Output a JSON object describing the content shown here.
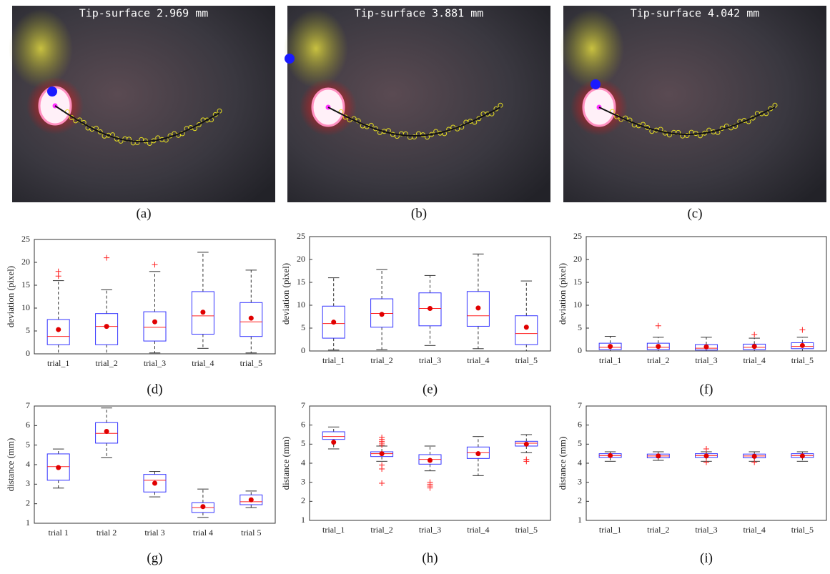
{
  "images": [
    {
      "label": "Tip-surface 2.969 mm",
      "caption": "(a)"
    },
    {
      "label": "Tip-surface 3.881 mm",
      "caption": "(b)"
    },
    {
      "label": "Tip-surface 4.042 mm",
      "caption": "(c)"
    }
  ],
  "chart_data": [
    {
      "type": "box",
      "caption": "(d)",
      "ylabel": "deviation (pixel)",
      "categories": [
        "trial_1",
        "trial_2",
        "trial_3",
        "trial_4",
        "trial_5"
      ],
      "ylim": [
        0,
        25
      ],
      "yticks": [
        0,
        5,
        10,
        15,
        20,
        25
      ],
      "box_color": "#3333ff",
      "median_color": "#ff2020",
      "mean_color": "#e00000",
      "boxes": [
        {
          "low": 0,
          "q1": 2,
          "median": 3.8,
          "q3": 7.5,
          "high": 16,
          "mean": 5.3,
          "outliers": [
            17,
            18
          ]
        },
        {
          "low": 0,
          "q1": 2,
          "median": 6,
          "q3": 8.8,
          "high": 14,
          "mean": 6,
          "outliers": [
            21
          ]
        },
        {
          "low": 0.2,
          "q1": 2.8,
          "median": 5.8,
          "q3": 9.2,
          "high": 18,
          "mean": 7,
          "outliers": [
            19.5
          ]
        },
        {
          "low": 1.2,
          "q1": 4.3,
          "median": 8.3,
          "q3": 13.6,
          "high": 22.2,
          "mean": 9.1,
          "outliers": []
        },
        {
          "low": 0.2,
          "q1": 3.8,
          "median": 7,
          "q3": 11.2,
          "high": 18.3,
          "mean": 7.8,
          "outliers": []
        }
      ]
    },
    {
      "type": "box",
      "caption": "(e)",
      "ylabel": "deviation (pixel)",
      "categories": [
        "trial_1",
        "trial_2",
        "trial_3",
        "trial_4",
        "trial_5"
      ],
      "ylim": [
        0,
        25
      ],
      "yticks": [
        0,
        5,
        10,
        15,
        20,
        25
      ],
      "box_color": "#3333ff",
      "median_color": "#ff2020",
      "mean_color": "#e00000",
      "boxes": [
        {
          "low": 0.2,
          "q1": 2.8,
          "median": 6,
          "q3": 9.8,
          "high": 16,
          "mean": 6.3,
          "outliers": []
        },
        {
          "low": 0.3,
          "q1": 5.2,
          "median": 8.2,
          "q3": 11.4,
          "high": 17.8,
          "mean": 8,
          "outliers": []
        },
        {
          "low": 1.2,
          "q1": 5.5,
          "median": 9.3,
          "q3": 12.7,
          "high": 16.5,
          "mean": 9.3,
          "outliers": []
        },
        {
          "low": 0.5,
          "q1": 5.4,
          "median": 7.7,
          "q3": 13,
          "high": 21.2,
          "mean": 9.4,
          "outliers": []
        },
        {
          "low": 0,
          "q1": 1.4,
          "median": 3.8,
          "q3": 7.7,
          "high": 15.3,
          "mean": 5.2,
          "outliers": []
        }
      ]
    },
    {
      "type": "box",
      "caption": "(f)",
      "ylabel": "deviation (pixel)",
      "categories": [
        "trial_1",
        "trial_2",
        "trial_3",
        "trial_4",
        "trial_5"
      ],
      "ylim": [
        0,
        25
      ],
      "yticks": [
        0,
        5,
        10,
        15,
        20,
        25
      ],
      "box_color": "#3333ff",
      "median_color": "#ff2020",
      "mean_color": "#e00000",
      "boxes": [
        {
          "low": 0,
          "q1": 0.3,
          "median": 0.8,
          "q3": 1.7,
          "high": 3.2,
          "mean": 1,
          "outliers": []
        },
        {
          "low": 0,
          "q1": 0.3,
          "median": 0.8,
          "q3": 1.7,
          "high": 3,
          "mean": 1,
          "outliers": [
            5.5
          ]
        },
        {
          "low": 0,
          "q1": 0.2,
          "median": 0.6,
          "q3": 1.4,
          "high": 3,
          "mean": 0.9,
          "outliers": []
        },
        {
          "low": 0,
          "q1": 0.3,
          "median": 0.8,
          "q3": 1.5,
          "high": 2.8,
          "mean": 1,
          "outliers": [
            3.6
          ]
        },
        {
          "low": 0,
          "q1": 0.5,
          "median": 1,
          "q3": 1.8,
          "high": 3,
          "mean": 1.2,
          "outliers": [
            4.6
          ]
        }
      ]
    },
    {
      "type": "box",
      "caption": "(g)",
      "ylabel": "distance (mm)",
      "categories": [
        "trial 1",
        "trial 2",
        "trial 3",
        "trial 4",
        "trial 5"
      ],
      "ylim": [
        1,
        7
      ],
      "yticks": [
        1,
        2,
        3,
        4,
        5,
        6,
        7
      ],
      "box_color": "#3333ff",
      "median_color": "#ff2020",
      "mean_color": "#e00000",
      "boxes": [
        {
          "low": 2.8,
          "q1": 3.2,
          "median": 3.9,
          "q3": 4.55,
          "high": 4.8,
          "mean": 3.85,
          "outliers": []
        },
        {
          "low": 4.35,
          "q1": 5.1,
          "median": 5.6,
          "q3": 6.15,
          "high": 6.9,
          "mean": 5.7,
          "outliers": []
        },
        {
          "low": 2.35,
          "q1": 2.6,
          "median": 3.2,
          "q3": 3.5,
          "high": 3.65,
          "mean": 3.05,
          "outliers": []
        },
        {
          "low": 1.3,
          "q1": 1.55,
          "median": 1.8,
          "q3": 2.05,
          "high": 2.75,
          "mean": 1.85,
          "outliers": []
        },
        {
          "low": 1.8,
          "q1": 1.95,
          "median": 2.1,
          "q3": 2.45,
          "high": 2.65,
          "mean": 2.2,
          "outliers": []
        }
      ]
    },
    {
      "type": "box",
      "caption": "(h)",
      "ylabel": "distance (mm)",
      "categories": [
        "trial_1",
        "trial_2",
        "trial_3",
        "trial_4",
        "trial_5"
      ],
      "ylim": [
        1,
        7
      ],
      "yticks": [
        1,
        2,
        3,
        4,
        5,
        6,
        7
      ],
      "box_color": "#3333ff",
      "median_color": "#ff2020",
      "mean_color": "#e00000",
      "boxes": [
        {
          "low": 4.75,
          "q1": 5.25,
          "median": 5.4,
          "q3": 5.65,
          "high": 5.9,
          "mean": 5.1,
          "outliers": []
        },
        {
          "low": 4.1,
          "q1": 4.35,
          "median": 4.5,
          "q3": 4.6,
          "high": 4.9,
          "mean": 4.5,
          "outliers": [
            2.95,
            3.7,
            3.9,
            4.95,
            5.05,
            5.15,
            5.25,
            5.35
          ]
        },
        {
          "low": 3.6,
          "q1": 3.95,
          "median": 4.2,
          "q3": 4.45,
          "high": 4.9,
          "mean": 4.15,
          "outliers": [
            2.7,
            2.8,
            2.9,
            3
          ]
        },
        {
          "low": 3.35,
          "q1": 4.25,
          "median": 4.55,
          "q3": 4.85,
          "high": 5.4,
          "mean": 4.5,
          "outliers": []
        },
        {
          "low": 4.55,
          "q1": 4.9,
          "median": 5.05,
          "q3": 5.15,
          "high": 5.5,
          "mean": 5,
          "outliers": [
            4.1,
            4.2
          ]
        }
      ]
    },
    {
      "type": "box",
      "caption": "(i)",
      "ylabel": "distance (mm)",
      "categories": [
        "trial_1",
        "trial_2",
        "trial_3",
        "trial_4",
        "trial_5"
      ],
      "ylim": [
        1,
        7
      ],
      "yticks": [
        1,
        2,
        3,
        4,
        5,
        6,
        7
      ],
      "box_color": "#3333ff",
      "median_color": "#ff2020",
      "mean_color": "#e00000",
      "boxes": [
        {
          "low": 4.1,
          "q1": 4.3,
          "median": 4.4,
          "q3": 4.5,
          "high": 4.6,
          "mean": 4.4,
          "outliers": []
        },
        {
          "low": 4.15,
          "q1": 4.28,
          "median": 4.38,
          "q3": 4.48,
          "high": 4.6,
          "mean": 4.38,
          "outliers": []
        },
        {
          "low": 4.1,
          "q1": 4.3,
          "median": 4.4,
          "q3": 4.5,
          "high": 4.6,
          "mean": 4.38,
          "outliers": [
            4.05,
            4.75
          ]
        },
        {
          "low": 4.1,
          "q1": 4.28,
          "median": 4.38,
          "q3": 4.48,
          "high": 4.6,
          "mean": 4.36,
          "outliers": [
            4.05
          ]
        },
        {
          "low": 4.1,
          "q1": 4.3,
          "median": 4.4,
          "q3": 4.5,
          "high": 4.6,
          "mean": 4.38,
          "outliers": []
        }
      ]
    }
  ]
}
